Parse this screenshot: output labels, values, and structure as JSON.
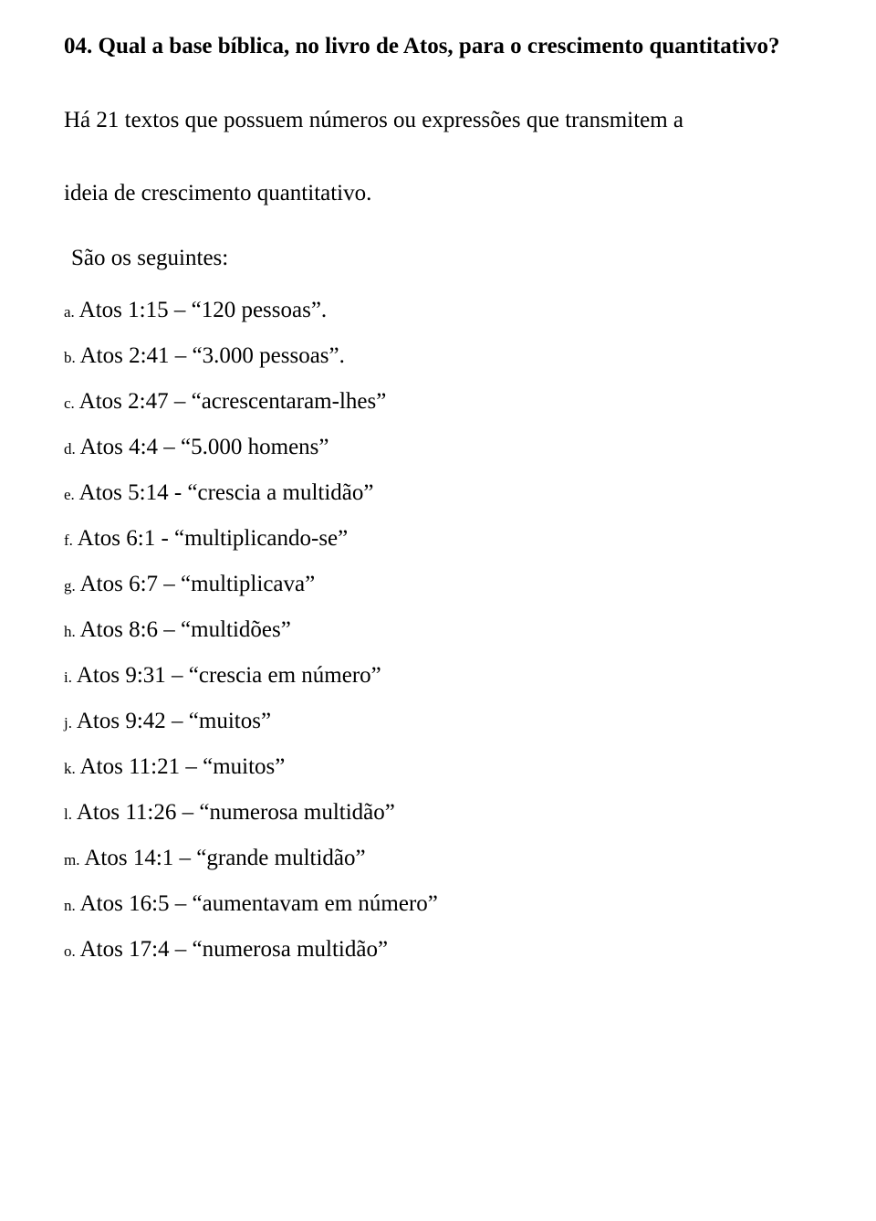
{
  "heading": "04. Qual a base bíblica, no livro de Atos, para o crescimento quantitativo?",
  "intro1": "Há 21 textos que possuem números ou expressões que transmitem a",
  "intro2": "ideia de crescimento quantitativo.",
  "subhead": "São os seguintes:",
  "items": [
    {
      "marker": "a.",
      "text": " Atos 1:15 – “120 pessoas”."
    },
    {
      "marker": "b.",
      "text": " Atos 2:41 – “3.000 pessoas”."
    },
    {
      "marker": "c.",
      "text": " Atos 2:47 – “acrescentaram-lhes”"
    },
    {
      "marker": "d.",
      "text": " Atos 4:4 – “5.000 homens”"
    },
    {
      "marker": "e.",
      "text": " Atos 5:14 - “crescia a multidão”"
    },
    {
      "marker": "f.",
      "text": " Atos 6:1 - “multiplicando-se”"
    },
    {
      "marker": "g.",
      "text": " Atos 6:7 – “multiplicava”"
    },
    {
      "marker": "h.",
      "text": " Atos 8:6 – “multidões”"
    },
    {
      "marker": "i.",
      "text": " Atos 9:31 – “crescia em número”"
    },
    {
      "marker": "j.",
      "text": " Atos 9:42 – “muitos”"
    },
    {
      "marker": "k.",
      "text": " Atos 11:21 – “muitos”"
    },
    {
      "marker": "l.",
      "text": " Atos 11:26 – “numerosa multidão”"
    },
    {
      "marker": "m.",
      "text": " Atos 14:1 – “grande multidão”"
    },
    {
      "marker": "n.",
      "text": " Atos 16:5 – “aumentavam em número”"
    },
    {
      "marker": "o.",
      "text": " Atos 17:4 – “numerosa multidão”"
    }
  ]
}
